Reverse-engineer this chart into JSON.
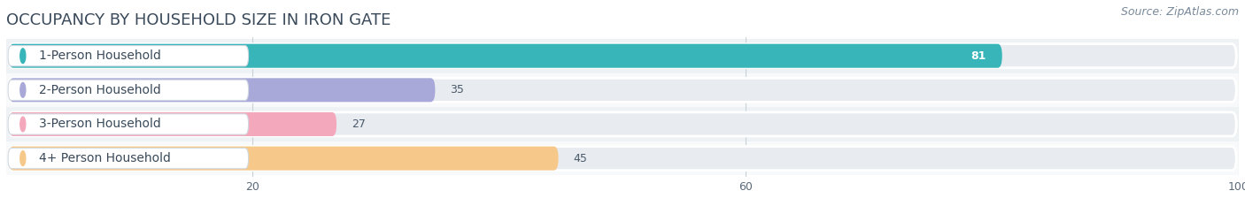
{
  "title": "OCCUPANCY BY HOUSEHOLD SIZE IN IRON GATE",
  "source": "Source: ZipAtlas.com",
  "categories": [
    "1-Person Household",
    "2-Person Household",
    "3-Person Household",
    "4+ Person Household"
  ],
  "values": [
    81,
    35,
    27,
    45
  ],
  "bar_colors": [
    "#38b5b8",
    "#a9a9d9",
    "#f4a8bb",
    "#f6c98a"
  ],
  "xlim": [
    0,
    100
  ],
  "xticks": [
    20,
    60,
    100
  ],
  "background_color": "#f5f7f9",
  "bar_background": "#e8ecf0",
  "row_bg_colors": [
    "#f0f4f6",
    "#f5f7f9"
  ],
  "title_fontsize": 13,
  "source_fontsize": 9,
  "label_fontsize": 10,
  "value_fontsize": 9
}
